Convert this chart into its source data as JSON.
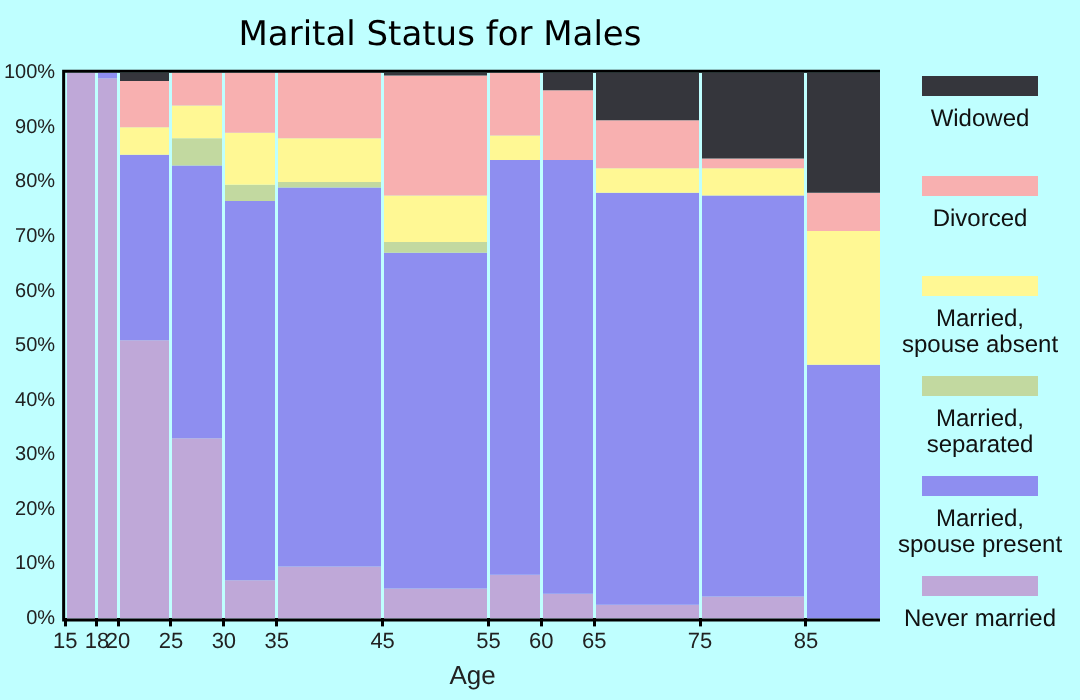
{
  "chart_data": {
    "type": "bar",
    "title": "Marital Status for Males",
    "xlabel": "Age",
    "stacked": true,
    "x": [
      16.5,
      19,
      22.5,
      27.5,
      32.5,
      40,
      50,
      57.5,
      62.5,
      70,
      80,
      88.5
    ],
    "series": [
      {
        "name": "Never married",
        "color": "#bfa8d8",
        "values": [
          100,
          99,
          51,
          33,
          7,
          9.5,
          5.5,
          8,
          4.5,
          2.5,
          4,
          0
        ]
      },
      {
        "name": "Married, spouse present",
        "color": "#8e8ef0",
        "values": [
          0,
          1,
          34,
          50,
          69.5,
          69.5,
          61.5,
          76,
          79.5,
          75.5,
          73.5,
          46.5
        ]
      },
      {
        "name": "Married, separated",
        "color": "#c2d9a0",
        "values": [
          0,
          0,
          0,
          5,
          3,
          1,
          2,
          0,
          0,
          0,
          0,
          0
        ]
      },
      {
        "name": "Married, spouse absent",
        "color": "#fff894",
        "values": [
          0,
          0,
          5,
          6,
          9.5,
          8,
          8.5,
          4.5,
          0,
          4.5,
          5,
          24.5
        ]
      },
      {
        "name": "Divorced",
        "color": "#f8b0b0",
        "values": [
          0,
          0,
          8.5,
          6,
          11,
          12,
          22,
          11.5,
          12.8,
          8.8,
          1.8,
          7
        ]
      },
      {
        "name": "Widowed",
        "color": "#35363c",
        "values": [
          0,
          0,
          1.5,
          0,
          0,
          0,
          0.5,
          0,
          3.2,
          8.7,
          15.7,
          22
        ]
      }
    ],
    "xlim": [
      15,
      92
    ],
    "xticks": [
      15,
      18,
      20,
      25,
      30,
      35,
      45,
      55,
      60,
      65,
      75,
      85
    ],
    "ylim": [
      0,
      100
    ],
    "yticks": [
      {
        "value": 0,
        "label": "0%"
      },
      {
        "value": 10,
        "label": "10%"
      },
      {
        "value": 20,
        "label": "20%"
      },
      {
        "value": 30,
        "label": "30%"
      },
      {
        "value": 40,
        "label": "40%"
      },
      {
        "value": 50,
        "label": "50%"
      },
      {
        "value": 60,
        "label": "60%"
      },
      {
        "value": 70,
        "label": "70%"
      },
      {
        "value": 80,
        "label": "80%"
      },
      {
        "value": 90,
        "label": "90%"
      },
      {
        "value": 100,
        "label": "100%"
      }
    ],
    "grid": "x",
    "legend": "right"
  }
}
